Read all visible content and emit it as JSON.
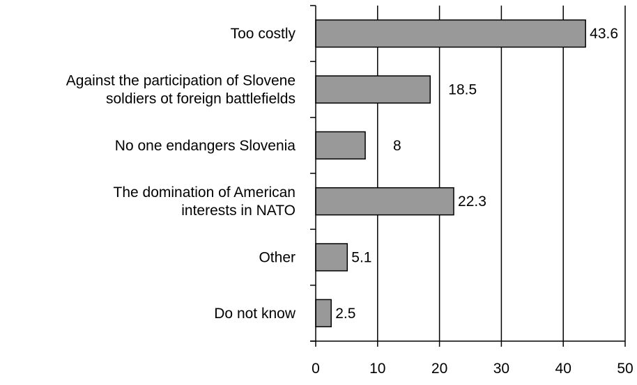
{
  "chart_data": {
    "type": "bar",
    "orientation": "horizontal",
    "title": "",
    "xlabel": "",
    "ylabel": "",
    "categories": [
      [
        "Too costly"
      ],
      [
        "Against the participation of Slovene",
        "soldiers ot foreign battlefields"
      ],
      [
        "No one endangers Slovenia"
      ],
      [
        "The domination of American",
        "interests in NATO"
      ],
      [
        "Other"
      ],
      [
        "Do not know"
      ]
    ],
    "values": [
      43.6,
      18.5,
      8,
      22.3,
      5.1,
      2.5
    ],
    "value_labels": [
      "43.6",
      "18.5",
      "8",
      "22.3",
      "5.1",
      "2.5"
    ],
    "xlim": [
      0,
      50
    ],
    "x_ticks": [
      0,
      10,
      20,
      30,
      40,
      50
    ],
    "x_tick_labels": [
      "0",
      "10",
      "20",
      "30",
      "40",
      "50"
    ],
    "grid": "vertical lines at major ticks",
    "legend": "none",
    "bar_color": "#999999",
    "bar_edge_color": "#000000"
  }
}
